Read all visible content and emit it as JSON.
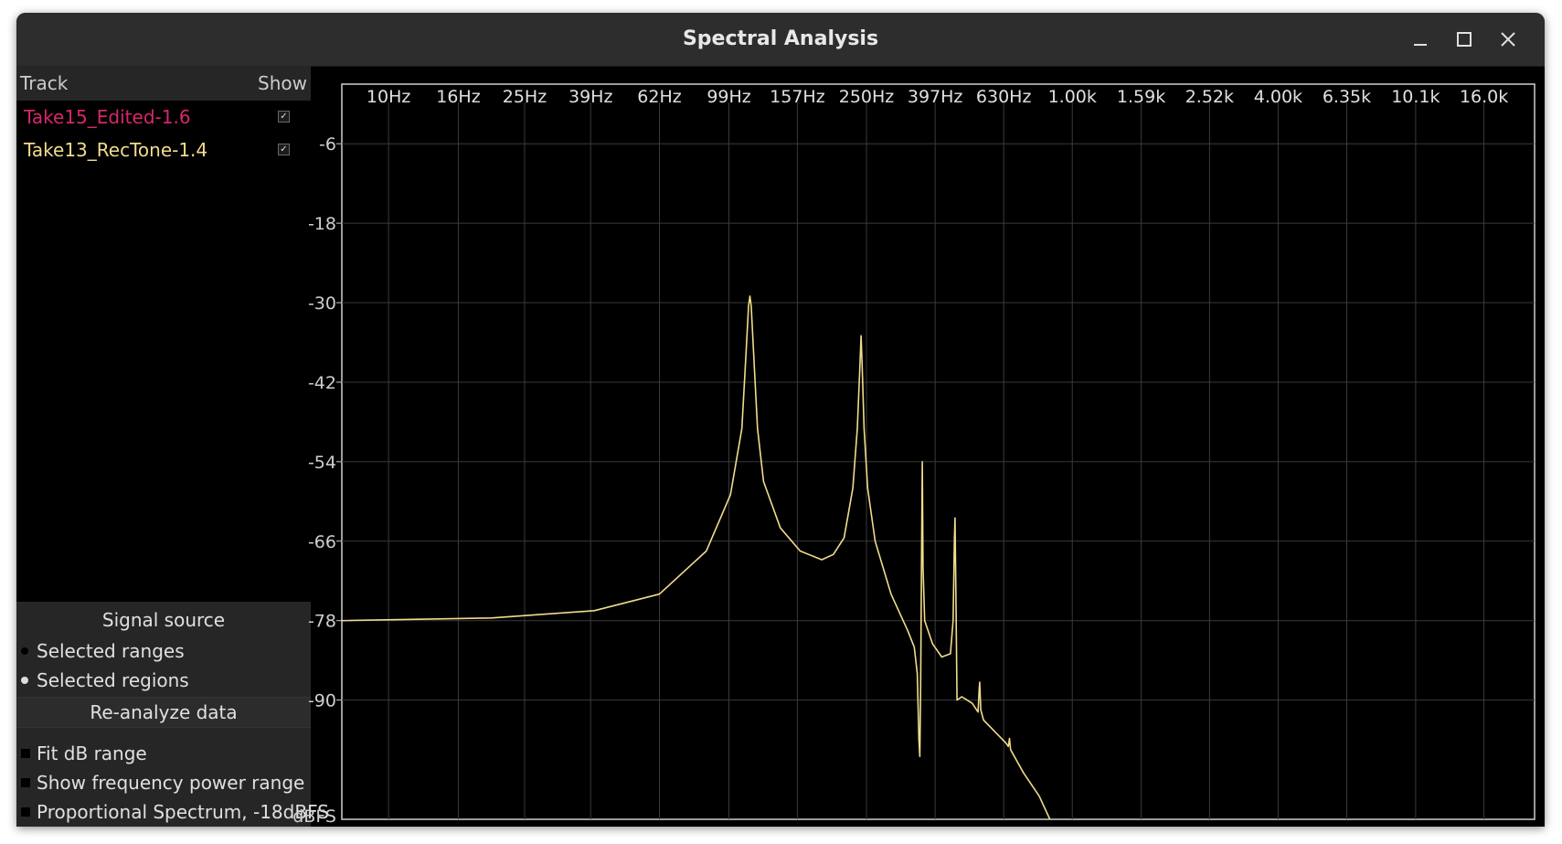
{
  "window": {
    "title": "Spectral Analysis"
  },
  "controls": {
    "minimize": "minimize-icon",
    "maximize": "maximize-icon",
    "close": "close-icon"
  },
  "track_list": {
    "header_track": "Track",
    "header_show": "Show",
    "tracks": [
      {
        "name": "Take15_Edited-1.6",
        "color": "#d6266f",
        "checked": true
      },
      {
        "name": "Take13_RecTone-1.4",
        "color": "#f0dc8c",
        "checked": true
      }
    ]
  },
  "signal_source": {
    "title": "Signal source",
    "options": [
      {
        "label": "Selected ranges",
        "selected": false
      },
      {
        "label": "Selected regions",
        "selected": true
      }
    ]
  },
  "reanalyze_label": "Re-analyze data",
  "options": [
    {
      "label": "Fit dB range",
      "checked": false
    },
    {
      "label": "Show frequency power range",
      "checked": false
    },
    {
      "label": "Proportional Spectrum, -18dBFS",
      "checked": false
    }
  ],
  "chart_data": {
    "type": "line",
    "x_scale": "log",
    "x_unit": "Hz",
    "x_ticks": [
      {
        "label": "10Hz",
        "value": 10
      },
      {
        "label": "16Hz",
        "value": 16
      },
      {
        "label": "25Hz",
        "value": 25
      },
      {
        "label": "39Hz",
        "value": 39
      },
      {
        "label": "62Hz",
        "value": 62
      },
      {
        "label": "99Hz",
        "value": 99
      },
      {
        "label": "157Hz",
        "value": 157
      },
      {
        "label": "250Hz",
        "value": 250
      },
      {
        "label": "397Hz",
        "value": 397
      },
      {
        "label": "630Hz",
        "value": 630
      },
      {
        "label": "1.00k",
        "value": 1000
      },
      {
        "label": "1.59k",
        "value": 1590
      },
      {
        "label": "2.52k",
        "value": 2520
      },
      {
        "label": "4.00k",
        "value": 4000
      },
      {
        "label": "6.35k",
        "value": 6350
      },
      {
        "label": "10.1k",
        "value": 10100
      },
      {
        "label": "16.0k",
        "value": 16000
      }
    ],
    "y_ticks": [
      -6,
      -18,
      -30,
      -42,
      -54,
      -66,
      -78,
      -90
    ],
    "y_unit_label": "dBFS",
    "xlim": [
      7.3,
      22500
    ],
    "ylim": [
      -108,
      3
    ],
    "grid": true,
    "series": [
      {
        "name": "Take13_RecTone-1.4",
        "color": "#f0dc8c",
        "points": [
          [
            7.3,
            -78.0
          ],
          [
            20,
            -77.6
          ],
          [
            40,
            -76.5
          ],
          [
            62,
            -74.0
          ],
          [
            85,
            -67.5
          ],
          [
            100,
            -59.0
          ],
          [
            108,
            -49.0
          ],
          [
            111,
            -38.0
          ],
          [
            113,
            -30.5
          ],
          [
            114,
            -29.0
          ],
          [
            115,
            -30.5
          ],
          [
            117,
            -38.0
          ],
          [
            120,
            -49.0
          ],
          [
            125,
            -57.0
          ],
          [
            140,
            -64.0
          ],
          [
            160,
            -67.5
          ],
          [
            185,
            -68.8
          ],
          [
            200,
            -68.0
          ],
          [
            215,
            -65.5
          ],
          [
            228,
            -58.0
          ],
          [
            235,
            -49.0
          ],
          [
            239,
            -40.0
          ],
          [
            241,
            -35.0
          ],
          [
            243,
            -40.0
          ],
          [
            246,
            -49.0
          ],
          [
            252,
            -58.0
          ],
          [
            265,
            -66.0
          ],
          [
            295,
            -74.0
          ],
          [
            330,
            -79.5
          ],
          [
            345,
            -82.0
          ],
          [
            352,
            -86.0
          ],
          [
            356,
            -96.0
          ],
          [
            358,
            -98.5
          ],
          [
            360,
            -88.0
          ],
          [
            362,
            -70.0
          ],
          [
            364,
            -54.0
          ],
          [
            366,
            -70.0
          ],
          [
            370,
            -78.0
          ],
          [
            390,
            -81.5
          ],
          [
            415,
            -83.5
          ],
          [
            440,
            -83.0
          ],
          [
            448,
            -78.0
          ],
          [
            452,
            -66.0
          ],
          [
            454,
            -62.5
          ],
          [
            456,
            -72.0
          ],
          [
            460,
            -90.0
          ],
          [
            475,
            -89.5
          ],
          [
            510,
            -90.5
          ],
          [
            530,
            -91.8
          ],
          [
            534,
            -88.5
          ],
          [
            536,
            -87.3
          ],
          [
            540,
            -91.5
          ],
          [
            550,
            -93.0
          ],
          [
            640,
            -96.5
          ],
          [
            650,
            -97.0
          ],
          [
            655,
            -95.8
          ],
          [
            660,
            -97.5
          ],
          [
            720,
            -101.0
          ],
          [
            800,
            -104.5
          ],
          [
            860,
            -108.0
          ]
        ]
      }
    ]
  }
}
